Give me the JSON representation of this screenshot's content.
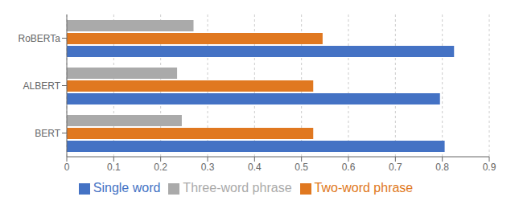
{
  "chart_data": {
    "type": "bar",
    "orientation": "horizontal",
    "categories": [
      "RoBERTa",
      "ALBERT",
      "BERT"
    ],
    "series": [
      {
        "name": "Three-word phrase",
        "color": "#aaaaaa",
        "values": [
          0.27,
          0.235,
          0.245
        ]
      },
      {
        "name": "Two-word phrase",
        "color": "#e07820",
        "values": [
          0.545,
          0.525,
          0.525
        ]
      },
      {
        "name": "Single word",
        "color": "#4472c4",
        "values": [
          0.825,
          0.795,
          0.805
        ]
      }
    ],
    "xlim": [
      0,
      0.9
    ],
    "xticks": [
      0,
      0.1,
      0.2,
      0.3,
      0.4,
      0.5,
      0.6,
      0.7,
      0.8,
      0.9
    ],
    "grid": true,
    "legend": "bottom"
  }
}
